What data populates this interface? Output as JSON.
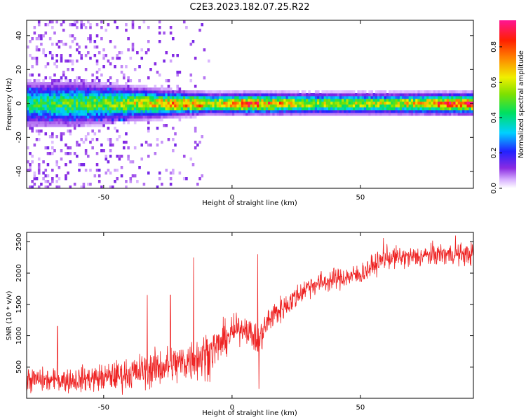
{
  "title": "C2E3.2023.182.07.25.R22",
  "colors": {
    "snr_line": "#ee2222",
    "frame": "#000000",
    "background": "#ffffff"
  },
  "chart_data": [
    {
      "type": "heatmap",
      "xlabel": "Height of straight line (km)",
      "ylabel": "Frequency (Hz)",
      "xlim": [
        -80,
        94
      ],
      "ylim": [
        -50,
        49
      ],
      "x_ticks": [
        -50,
        0,
        50
      ],
      "x_tick_labels": [
        "-50",
        "0",
        "50"
      ],
      "y_ticks": [
        -40,
        -20,
        0,
        20,
        40
      ],
      "y_tick_labels": [
        "-40",
        "-20",
        "0",
        "20",
        "40"
      ],
      "grid": false,
      "colorbar": {
        "label": "Normalized spectral amplitude",
        "range": [
          0,
          0.95
        ],
        "ticks": [
          0.0,
          0.2,
          0.4,
          0.6,
          0.8
        ],
        "tick_labels": [
          "0.0",
          "0.2",
          "0.4",
          "0.6",
          "0.8"
        ],
        "colormap": "rainbow (white-purple-blue-cyan-green-yellow-orange-red-magenta)"
      },
      "band": {
        "center_frequency_hz": 0,
        "description": "narrow high-amplitude band near 0 Hz across all heights; broad noisy scatter at heights below about -10 km",
        "profile": [
          {
            "x": -80,
            "halfwidth_hz": 6,
            "peak": 0.45,
            "scatter": 0.9
          },
          {
            "x": -60,
            "halfwidth_hz": 6,
            "peak": 0.5,
            "scatter": 0.9
          },
          {
            "x": -45,
            "halfwidth_hz": 5,
            "peak": 0.55,
            "scatter": 0.6
          },
          {
            "x": -30,
            "halfwidth_hz": 4,
            "peak": 0.7,
            "scatter": 0.35
          },
          {
            "x": -12,
            "halfwidth_hz": 3,
            "peak": 0.8,
            "scatter": 0.25
          },
          {
            "x": -8,
            "halfwidth_hz": 3,
            "peak": 0.6,
            "scatter": 0.0
          },
          {
            "x": 6,
            "halfwidth_hz": 3,
            "peak": 0.85,
            "scatter": 0.0
          },
          {
            "x": 30,
            "halfwidth_hz": 3,
            "peak": 0.6,
            "scatter": 0.0
          },
          {
            "x": 60,
            "halfwidth_hz": 3,
            "peak": 0.6,
            "scatter": 0.0
          },
          {
            "x": 94,
            "halfwidth_hz": 3,
            "peak": 0.9,
            "scatter": 0.0
          }
        ]
      }
    },
    {
      "type": "line",
      "xlabel": "Height of straight line (km)",
      "ylabel": "SNR (10 * v/v)",
      "xlim": [
        -80,
        94
      ],
      "ylim": [
        0,
        2650
      ],
      "x_ticks": [
        -50,
        0,
        50
      ],
      "x_tick_labels": [
        "-50",
        "0",
        "50"
      ],
      "y_ticks": [
        500,
        1000,
        1500,
        2000,
        2500
      ],
      "y_tick_labels": [
        "500",
        "1000",
        "1500",
        "2000",
        "2500"
      ],
      "grid": false,
      "series": [
        {
          "x": [
            -80,
            -70,
            -60,
            -50,
            -40,
            -30,
            -20,
            -10,
            -5,
            0,
            5,
            10,
            15,
            20,
            30,
            40,
            50,
            60,
            70,
            80,
            94
          ],
          "mean": [
            300,
            280,
            300,
            330,
            390,
            480,
            560,
            700,
            850,
            1050,
            1150,
            900,
            1300,
            1450,
            1800,
            1900,
            1980,
            2250,
            2250,
            2300,
            2300
          ],
          "spread": [
            200,
            180,
            200,
            220,
            250,
            300,
            330,
            380,
            300,
            250,
            200,
            250,
            250,
            200,
            180,
            170,
            170,
            170,
            170,
            170,
            170
          ],
          "spikes": [
            {
              "x": -15,
              "y": 2250
            },
            {
              "x": 10,
              "y": 2300
            },
            {
              "x": 10.5,
              "y": 150
            },
            {
              "x": -33,
              "y": 1650
            },
            {
              "x": -24,
              "y": 1650
            },
            {
              "x": -68,
              "y": 1150
            },
            {
              "x": 59,
              "y": 2560
            },
            {
              "x": 87,
              "y": 2600
            }
          ]
        }
      ]
    }
  ]
}
